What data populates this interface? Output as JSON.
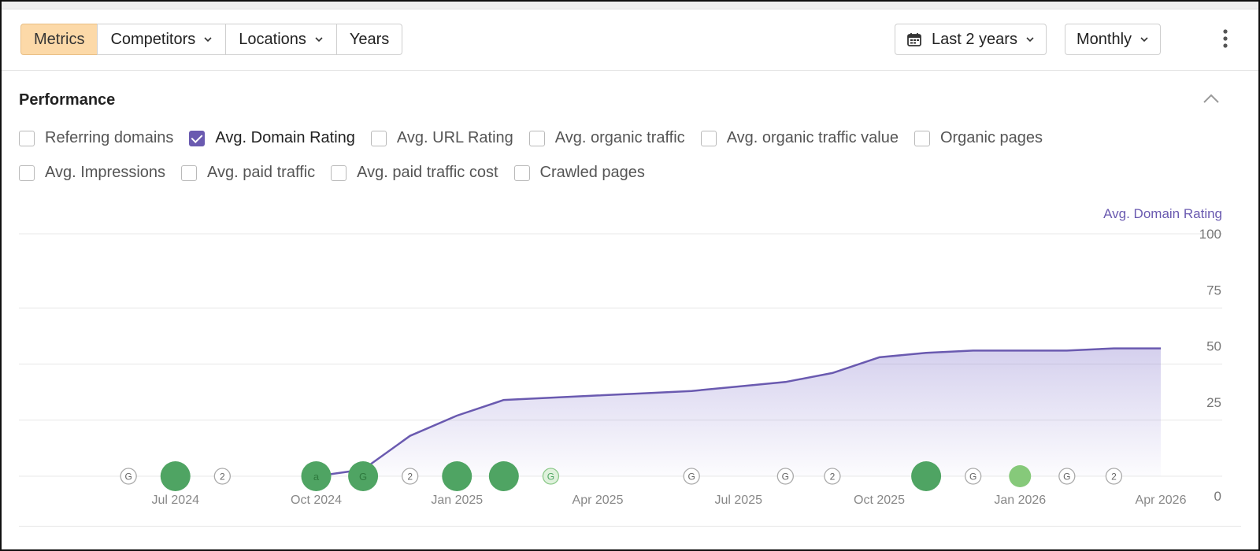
{
  "toolbar": {
    "tabs": [
      {
        "label": "Metrics",
        "active": true,
        "dropdown": false
      },
      {
        "label": "Competitors",
        "active": false,
        "dropdown": true
      },
      {
        "label": "Locations",
        "active": false,
        "dropdown": true
      },
      {
        "label": "Years",
        "active": false,
        "dropdown": false
      }
    ],
    "date_range": {
      "label": "Last 2 years",
      "icon": "calendar-icon"
    },
    "interval": {
      "label": "Monthly"
    },
    "more_icon": "kebab-icon",
    "active_color": "#fcd9a8"
  },
  "panel": {
    "title": "Performance",
    "collapse_icon": "chevron-up-icon",
    "metrics_row1": [
      {
        "label": "Referring domains",
        "checked": false
      },
      {
        "label": "Avg. Domain Rating",
        "checked": true
      },
      {
        "label": "Avg. URL Rating",
        "checked": false
      },
      {
        "label": "Avg. organic traffic",
        "checked": false
      },
      {
        "label": "Avg. organic traffic value",
        "checked": false
      },
      {
        "label": "Organic pages",
        "checked": false
      }
    ],
    "metrics_row2": [
      {
        "label": "Avg. Impressions",
        "checked": false
      },
      {
        "label": "Avg. paid traffic",
        "checked": false
      },
      {
        "label": "Avg. paid traffic cost",
        "checked": false
      },
      {
        "label": "Crawled pages",
        "checked": false
      }
    ]
  },
  "chart_data": {
    "type": "area",
    "y_axis_title": "Avg. Domain Rating",
    "ylim": [
      0,
      100
    ],
    "y_ticks": [
      0,
      25,
      50,
      75,
      100
    ],
    "x_range": [
      "2024-04",
      "2026-04"
    ],
    "x_tick_labels": [
      {
        "label": "Jul 2024",
        "date": "2024-07"
      },
      {
        "label": "Oct 2024",
        "date": "2024-10"
      },
      {
        "label": "Jan 2025",
        "date": "2025-01"
      },
      {
        "label": "Apr 2025",
        "date": "2025-04"
      },
      {
        "label": "Jul 2025",
        "date": "2025-07"
      },
      {
        "label": "Oct 2025",
        "date": "2025-10"
      },
      {
        "label": "Jan 2026",
        "date": "2026-01"
      },
      {
        "label": "Apr 2026",
        "date": "2026-04"
      }
    ],
    "series": [
      {
        "name": "Avg. Domain Rating",
        "color": "#6a5ab0",
        "points": [
          {
            "date": "2024-10",
            "value": 0
          },
          {
            "date": "2024-11",
            "value": 3
          },
          {
            "date": "2024-12",
            "value": 18
          },
          {
            "date": "2025-01",
            "value": 27
          },
          {
            "date": "2025-02",
            "value": 34
          },
          {
            "date": "2025-03",
            "value": 35
          },
          {
            "date": "2025-04",
            "value": 36
          },
          {
            "date": "2025-05",
            "value": 37
          },
          {
            "date": "2025-06",
            "value": 38
          },
          {
            "date": "2025-07",
            "value": 40
          },
          {
            "date": "2025-08",
            "value": 42
          },
          {
            "date": "2025-09",
            "value": 46
          },
          {
            "date": "2025-10",
            "value": 53
          },
          {
            "date": "2025-11",
            "value": 55
          },
          {
            "date": "2025-12",
            "value": 56
          },
          {
            "date": "2026-01",
            "value": 56
          },
          {
            "date": "2026-02",
            "value": 56
          },
          {
            "date": "2026-03",
            "value": 57
          },
          {
            "date": "2026-04",
            "value": 57
          }
        ]
      }
    ],
    "grid": true,
    "annotations": [
      {
        "date": "2024-06",
        "kind": "G",
        "style": "small"
      },
      {
        "date": "2024-07",
        "kind": "dot",
        "style": "large",
        "color": "#4fa463"
      },
      {
        "date": "2024-08",
        "kind": "2",
        "style": "small"
      },
      {
        "date": "2024-10",
        "kind": "a",
        "style": "large",
        "color": "#4fa463"
      },
      {
        "date": "2024-11",
        "kind": "G",
        "style": "large",
        "color": "#4fa463"
      },
      {
        "date": "2024-12",
        "kind": "2",
        "style": "small"
      },
      {
        "date": "2025-01",
        "kind": "dot",
        "style": "large",
        "color": "#4fa463"
      },
      {
        "date": "2025-02",
        "kind": "dot",
        "style": "large",
        "color": "#4fa463"
      },
      {
        "date": "2025-03",
        "kind": "G",
        "style": "small-green"
      },
      {
        "date": "2025-06",
        "kind": "G",
        "style": "small"
      },
      {
        "date": "2025-08",
        "kind": "G",
        "style": "small"
      },
      {
        "date": "2025-09",
        "kind": "2",
        "style": "small"
      },
      {
        "date": "2025-11",
        "kind": "dot",
        "style": "large",
        "color": "#4fa463"
      },
      {
        "date": "2025-12",
        "kind": "G",
        "style": "small"
      },
      {
        "date": "2026-01",
        "kind": "dot",
        "style": "medium",
        "color": "#86c97a"
      },
      {
        "date": "2026-02",
        "kind": "G",
        "style": "small"
      },
      {
        "date": "2026-03",
        "kind": "2",
        "style": "small"
      }
    ]
  }
}
